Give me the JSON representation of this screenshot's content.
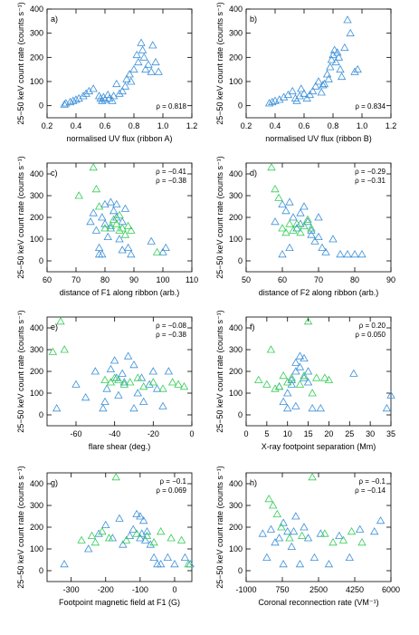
{
  "chart_data": [
    {
      "type": "scatter",
      "panel_label": "a)",
      "xlabel": "normalised UV flux (ribbon A)",
      "ylabel": "25−50 keV count rate (counts s⁻¹)",
      "xlim": [
        0.2,
        1.2
      ],
      "ylim": [
        -50,
        400
      ],
      "xticks": [
        0.2,
        0.4,
        0.6,
        0.8,
        {
          "value": 1.0,
          "label": "1.0"
        },
        1.2
      ],
      "yticks": [
        0,
        100,
        200,
        300,
        400
      ],
      "annotation_corner": "lower right",
      "annotations": [
        {
          "text": "ρ = 0.818",
          "color": "#000000"
        }
      ],
      "series": [
        {
          "color": "#3a8fd8",
          "x": [
            0.32,
            0.33,
            0.36,
            0.38,
            0.4,
            0.42,
            0.45,
            0.47,
            0.49,
            0.52,
            0.56,
            0.57,
            0.58,
            0.59,
            0.6,
            0.62,
            0.63,
            0.65,
            0.66,
            0.68,
            0.7,
            0.72,
            0.74,
            0.75,
            0.77,
            0.78,
            0.8,
            0.82,
            0.83,
            0.85,
            0.86,
            0.87,
            0.88,
            0.9,
            0.92,
            0.93,
            0.95,
            0.97
          ],
          "values": [
            5,
            10,
            15,
            20,
            25,
            30,
            40,
            50,
            60,
            70,
            40,
            30,
            20,
            35,
            25,
            45,
            30,
            20,
            40,
            90,
            50,
            60,
            80,
            110,
            130,
            100,
            150,
            210,
            180,
            260,
            230,
            200,
            150,
            170,
            140,
            250,
            180,
            140
          ]
        }
      ]
    },
    {
      "type": "scatter",
      "panel_label": "b)",
      "xlabel": "normalised UV flux (ribbon B)",
      "ylabel": "25−50 keV count rate (counts s⁻¹)",
      "xlim": [
        0.2,
        1.2
      ],
      "ylim": [
        -50,
        400
      ],
      "xticks": [
        0.2,
        0.4,
        0.6,
        0.8,
        {
          "value": 1.0,
          "label": "1.0"
        },
        1.2
      ],
      "yticks": [
        0,
        100,
        200,
        300,
        400
      ],
      "annotation_corner": "lower right",
      "annotations": [
        {
          "text": "ρ = 0.834",
          "color": "#000000"
        }
      ],
      "series": [
        {
          "color": "#3a8fd8",
          "x": [
            0.36,
            0.38,
            0.4,
            0.43,
            0.46,
            0.49,
            0.52,
            0.54,
            0.55,
            0.57,
            0.58,
            0.6,
            0.62,
            0.64,
            0.66,
            0.68,
            0.7,
            0.72,
            0.74,
            0.76,
            0.78,
            0.79,
            0.8,
            0.81,
            0.82,
            0.83,
            0.84,
            0.85,
            0.86,
            0.88,
            0.9,
            0.92,
            0.95,
            0.97,
            0.73,
            0.77
          ],
          "values": [
            10,
            15,
            20,
            25,
            35,
            45,
            60,
            30,
            20,
            40,
            70,
            50,
            30,
            45,
            60,
            80,
            100,
            55,
            90,
            130,
            160,
            190,
            210,
            230,
            180,
            220,
            200,
            150,
            120,
            240,
            355,
            300,
            140,
            150,
            85,
            110
          ]
        }
      ]
    },
    {
      "type": "scatter",
      "panel_label": "c)",
      "xlabel": "distance of F1 along ribbon (arb.)",
      "ylabel": "25−50 keV count rate (counts s⁻¹)",
      "xlim": [
        60,
        110
      ],
      "ylim": [
        -50,
        450
      ],
      "xticks": [
        60,
        70,
        80,
        90,
        100,
        110
      ],
      "yticks": [
        0,
        100,
        200,
        300,
        400
      ],
      "annotation_corner": "upper right",
      "annotations": [
        {
          "text": "ρ = −0.41",
          "color": "#000000"
        },
        {
          "text": "ρ = −0.38",
          "color": "#33cc55"
        }
      ],
      "series": [
        {
          "color": "#3a8fd8",
          "x": [
            75,
            76,
            77,
            78,
            79,
            80,
            80,
            81,
            82,
            82,
            83,
            84,
            85,
            86,
            87,
            88,
            89,
            78,
            79,
            96,
            100,
            101,
            84,
            86
          ],
          "values": [
            180,
            220,
            140,
            60,
            200,
            170,
            260,
            110,
            150,
            270,
            230,
            200,
            100,
            180,
            240,
            60,
            30,
            30,
            30,
            90,
            40,
            60,
            260,
            50
          ]
        },
        {
          "color": "#33cc55",
          "x": [
            71,
            76,
            77,
            78,
            80,
            82,
            83,
            84,
            85,
            85,
            86,
            87,
            88,
            89,
            98
          ],
          "values": [
            300,
            430,
            330,
            250,
            150,
            160,
            190,
            170,
            140,
            210,
            150,
            120,
            160,
            140,
            40
          ]
        }
      ]
    },
    {
      "type": "scatter",
      "panel_label": "d)",
      "xlabel": "distance of F2 along ribbon (arb.)",
      "ylabel": "25−50 keV count rate (counts s⁻¹)",
      "xlim": [
        50,
        90
      ],
      "ylim": [
        -50,
        450
      ],
      "xticks": [
        50,
        60,
        70,
        80,
        90
      ],
      "yticks": [
        0,
        100,
        200,
        300,
        400
      ],
      "annotation_corner": "upper right",
      "annotations": [
        {
          "text": "ρ = −0.29",
          "color": "#000000"
        },
        {
          "text": "ρ = −0.31",
          "color": "#33cc55"
        }
      ],
      "series": [
        {
          "color": "#3a8fd8",
          "x": [
            58,
            60,
            61,
            62,
            63,
            64,
            65,
            66,
            67,
            68,
            69,
            70,
            71,
            72,
            74,
            76,
            78,
            80,
            82,
            60,
            62,
            65,
            68,
            70
          ],
          "values": [
            180,
            260,
            230,
            270,
            200,
            150,
            220,
            250,
            180,
            120,
            90,
            200,
            60,
            40,
            100,
            30,
            30,
            30,
            30,
            30,
            60,
            170,
            140,
            110
          ]
        },
        {
          "color": "#33cc55",
          "x": [
            57,
            58,
            59,
            60,
            61,
            62,
            63,
            64,
            65,
            66,
            67,
            68
          ],
          "values": [
            430,
            330,
            290,
            150,
            130,
            170,
            140,
            170,
            130,
            160,
            190,
            150
          ]
        }
      ]
    },
    {
      "type": "scatter",
      "panel_label": "e)",
      "xlabel": "flare shear (deg.)",
      "ylabel": "25−50 keV count rate (counts s⁻¹)",
      "xlim": [
        -75,
        0
      ],
      "ylim": [
        -50,
        450
      ],
      "xticks": [
        -60,
        -40,
        -20,
        0
      ],
      "yticks": [
        0,
        100,
        200,
        300,
        400
      ],
      "annotation_corner": "upper right",
      "annotations": [
        {
          "text": "ρ = −0.08",
          "color": "#000000"
        },
        {
          "text": "ρ = −0.38",
          "color": "#33cc55"
        }
      ],
      "series": [
        {
          "color": "#3a8fd8",
          "x": [
            -70,
            -60,
            -55,
            -50,
            -46,
            -44,
            -42,
            -40,
            -39,
            -38,
            -36,
            -35,
            -33,
            -30,
            -28,
            -26,
            -25,
            -22,
            -20,
            -18,
            -15,
            -12,
            -45,
            -30
          ],
          "values": [
            30,
            140,
            80,
            200,
            30,
            120,
            210,
            250,
            170,
            90,
            190,
            150,
            270,
            230,
            100,
            170,
            60,
            140,
            200,
            120,
            40,
            200,
            60,
            30
          ]
        },
        {
          "color": "#33cc55",
          "x": [
            -72,
            -68,
            -66,
            -45,
            -42,
            -40,
            -38,
            -35,
            -32,
            -28,
            -25,
            -20,
            -15,
            -10,
            -7,
            -4
          ],
          "values": [
            290,
            430,
            300,
            160,
            150,
            170,
            160,
            140,
            150,
            170,
            130,
            150,
            120,
            150,
            140,
            130
          ]
        }
      ]
    },
    {
      "type": "scatter",
      "panel_label": "f)",
      "xlabel": "X-ray footpoint separation (Mm)",
      "ylabel": "25−50 keV count rate (counts s⁻¹)",
      "xlim": [
        0,
        35
      ],
      "ylim": [
        -50,
        450
      ],
      "xticks": [
        0,
        5,
        10,
        15,
        20,
        25,
        30,
        35
      ],
      "yticks": [
        0,
        100,
        200,
        300,
        400
      ],
      "annotation_corner": "upper right",
      "annotations": [
        {
          "text": "ρ = 0.20",
          "color": "#000000"
        },
        {
          "text": "ρ = 0.050",
          "color": "#33cc55"
        }
      ],
      "series": [
        {
          "color": "#3a8fd8",
          "x": [
            9,
            10,
            11,
            12,
            12,
            13,
            13,
            14,
            14,
            15,
            15,
            16,
            12,
            10,
            8,
            18,
            26,
            34,
            35,
            11
          ],
          "values": [
            60,
            100,
            160,
            200,
            240,
            220,
            270,
            170,
            260,
            150,
            200,
            30,
            40,
            30,
            130,
            30,
            190,
            30,
            90,
            140
          ]
        },
        {
          "color": "#33cc55",
          "x": [
            3,
            5,
            6,
            7,
            8,
            9,
            10,
            11,
            13,
            14,
            15,
            16,
            17,
            19,
            20
          ],
          "values": [
            160,
            140,
            300,
            120,
            130,
            180,
            150,
            170,
            140,
            180,
            430,
            100,
            170,
            170,
            160
          ]
        }
      ]
    },
    {
      "type": "scatter",
      "panel_label": "g)",
      "xlabel": "Footpoint magnetic field at F1 (G)",
      "ylabel": "25−50 keV count rate (counts s⁻¹)",
      "xlim": [
        -370,
        50
      ],
      "ylim": [
        -50,
        450
      ],
      "xticks": [
        -300,
        -200,
        -100,
        0
      ],
      "yticks": [
        0,
        100,
        200,
        300,
        400
      ],
      "annotation_corner": "upper right",
      "annotations": [
        {
          "text": "ρ = −0.1",
          "color": "#000000"
        },
        {
          "text": "ρ = 0.069",
          "color": "#33cc55"
        }
      ],
      "series": [
        {
          "color": "#3a8fd8",
          "x": [
            -320,
            -250,
            -220,
            -200,
            -180,
            -160,
            -150,
            -130,
            -120,
            -110,
            -100,
            -95,
            -90,
            -85,
            -80,
            -70,
            -60,
            -50,
            -40,
            -20,
            0,
            30,
            45,
            -100
          ],
          "values": [
            30,
            100,
            170,
            210,
            150,
            240,
            120,
            160,
            190,
            260,
            250,
            170,
            230,
            140,
            180,
            120,
            60,
            30,
            30,
            60,
            30,
            60,
            30,
            150
          ]
        },
        {
          "color": "#33cc55",
          "x": [
            -270,
            -240,
            -230,
            -210,
            -190,
            -170,
            -140,
            -110,
            -80,
            -60,
            -40,
            -10,
            20,
            40
          ],
          "values": [
            140,
            160,
            130,
            180,
            150,
            430,
            140,
            170,
            160,
            130,
            180,
            150,
            140,
            30
          ]
        }
      ]
    },
    {
      "type": "scatter",
      "panel_label": "h)",
      "xlabel": "Coronal reconnection rate (VM⁻¹)",
      "ylabel": "25−50 keV count rate (counts s⁻¹)",
      "xlim": [
        -1000,
        6000
      ],
      "ylim": [
        -50,
        450
      ],
      "xticks": [
        -1000,
        750,
        2500,
        4250,
        6000
      ],
      "yticks": [
        0,
        100,
        200,
        300,
        400
      ],
      "annotation_corner": "upper right",
      "annotations": [
        {
          "text": "ρ = −0.1",
          "color": "#000000"
        },
        {
          "text": "ρ = −0.14",
          "color": "#33cc55"
        }
      ],
      "series": [
        {
          "color": "#3a8fd8",
          "x": [
            -200,
            0,
            200,
            400,
            600,
            800,
            1000,
            1200,
            1400,
            1600,
            1800,
            2000,
            2300,
            2600,
            3000,
            3500,
            4000,
            4500,
            5200,
            5500,
            800,
            1300
          ],
          "values": [
            170,
            60,
            190,
            130,
            150,
            220,
            180,
            110,
            250,
            30,
            200,
            150,
            60,
            170,
            30,
            160,
            60,
            190,
            180,
            230,
            30,
            180
          ]
        },
        {
          "color": "#33cc55",
          "x": [
            100,
            300,
            500,
            700,
            1100,
            1700,
            2200,
            2800,
            3200,
            3700,
            4100,
            4600
          ],
          "values": [
            330,
            300,
            260,
            200,
            150,
            160,
            430,
            170,
            130,
            140,
            180,
            130
          ]
        }
      ]
    }
  ]
}
